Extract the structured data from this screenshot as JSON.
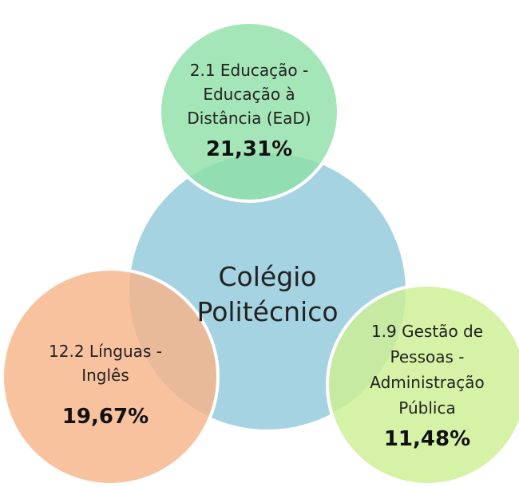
{
  "center": {
    "label": [
      "Colégio",
      "Politécnico"
    ]
  },
  "nodes": [
    {
      "label": [
        "2.1 Educação -",
        "Educação à",
        "Distância (EaD)"
      ],
      "value": "21,31%"
    },
    {
      "label": [
        "12.2 Línguas -",
        "Inglês"
      ],
      "value": "19,67%"
    },
    {
      "label": [
        "1.9 Gestão de",
        "Pessoas -",
        "Administração",
        "Pública"
      ],
      "value": "11,48%"
    }
  ]
}
